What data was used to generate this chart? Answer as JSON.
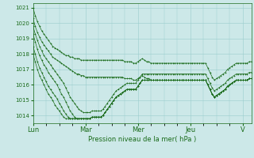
{
  "background_color": "#cce8e8",
  "grid_color": "#99cccc",
  "line_color": "#1a6b1a",
  "marker": "+",
  "xlabel": "Pression niveau de la mer( hPa )",
  "ylim": [
    1013.5,
    1021.3
  ],
  "yticks": [
    1014,
    1015,
    1016,
    1017,
    1018,
    1019,
    1020,
    1021
  ],
  "x_day_labels": [
    "Lun",
    "Mar",
    "Mer",
    "Jeu",
    "V"
  ],
  "x_day_positions": [
    0,
    24,
    48,
    72,
    96
  ],
  "series": [
    [
      1021.0,
      1020.5,
      1020.1,
      1019.8,
      1019.5,
      1019.3,
      1019.1,
      1018.9,
      1018.7,
      1018.5,
      1018.4,
      1018.3,
      1018.2,
      1018.1,
      1018.0,
      1017.9,
      1017.9,
      1017.8,
      1017.8,
      1017.7,
      1017.7,
      1017.7,
      1017.6,
      1017.6,
      1017.6,
      1017.6,
      1017.6,
      1017.6,
      1017.6,
      1017.6,
      1017.6,
      1017.6,
      1017.6,
      1017.6,
      1017.6,
      1017.6,
      1017.6,
      1017.6,
      1017.6,
      1017.6,
      1017.6,
      1017.6,
      1017.5,
      1017.5,
      1017.5,
      1017.5,
      1017.4,
      1017.4,
      1017.5,
      1017.6,
      1017.7,
      1017.6,
      1017.5,
      1017.5,
      1017.4,
      1017.4,
      1017.4,
      1017.4,
      1017.4,
      1017.4,
      1017.4,
      1017.4,
      1017.4,
      1017.4,
      1017.4,
      1017.4,
      1017.4,
      1017.4,
      1017.4,
      1017.4,
      1017.4,
      1017.4,
      1017.4,
      1017.4,
      1017.4,
      1017.4,
      1017.4,
      1017.4,
      1017.4,
      1017.4,
      1017.1,
      1016.8,
      1016.5,
      1016.3,
      1016.4,
      1016.5,
      1016.6,
      1016.7,
      1016.8,
      1017.0,
      1017.1,
      1017.2,
      1017.3,
      1017.4,
      1017.4,
      1017.4,
      1017.4,
      1017.4,
      1017.4,
      1017.5,
      1017.5
    ],
    [
      1020.3,
      1019.8,
      1019.4,
      1019.1,
      1018.8,
      1018.6,
      1018.4,
      1018.2,
      1018.0,
      1017.8,
      1017.7,
      1017.6,
      1017.5,
      1017.4,
      1017.3,
      1017.2,
      1017.1,
      1017.0,
      1016.9,
      1016.8,
      1016.7,
      1016.7,
      1016.6,
      1016.6,
      1016.5,
      1016.5,
      1016.5,
      1016.5,
      1016.5,
      1016.5,
      1016.5,
      1016.5,
      1016.5,
      1016.5,
      1016.5,
      1016.5,
      1016.5,
      1016.5,
      1016.5,
      1016.5,
      1016.5,
      1016.5,
      1016.4,
      1016.4,
      1016.4,
      1016.4,
      1016.3,
      1016.3,
      1016.4,
      1016.5,
      1016.6,
      1016.5,
      1016.4,
      1016.4,
      1016.3,
      1016.3,
      1016.3,
      1016.3,
      1016.3,
      1016.3,
      1016.3,
      1016.3,
      1016.3,
      1016.3,
      1016.3,
      1016.3,
      1016.3,
      1016.3,
      1016.3,
      1016.3,
      1016.3,
      1016.3,
      1016.3,
      1016.3,
      1016.3,
      1016.3,
      1016.3,
      1016.3,
      1016.3,
      1016.3,
      1016.0,
      1015.7,
      1015.4,
      1015.2,
      1015.3,
      1015.4,
      1015.5,
      1015.6,
      1015.7,
      1015.9,
      1016.0,
      1016.1,
      1016.2,
      1016.3,
      1016.3,
      1016.3,
      1016.3,
      1016.3,
      1016.3,
      1016.4,
      1016.4
    ],
    [
      1019.8,
      1019.3,
      1018.9,
      1018.5,
      1018.2,
      1017.9,
      1017.7,
      1017.5,
      1017.3,
      1017.1,
      1016.9,
      1016.7,
      1016.5,
      1016.3,
      1016.1,
      1015.8,
      1015.5,
      1015.2,
      1015.0,
      1014.8,
      1014.6,
      1014.4,
      1014.3,
      1014.2,
      1014.2,
      1014.2,
      1014.2,
      1014.3,
      1014.3,
      1014.3,
      1014.3,
      1014.3,
      1014.4,
      1014.6,
      1014.8,
      1015.0,
      1015.2,
      1015.4,
      1015.6,
      1015.7,
      1015.8,
      1015.9,
      1016.0,
      1016.1,
      1016.1,
      1016.1,
      1016.1,
      1016.1,
      1016.3,
      1016.5,
      1016.7,
      1016.7,
      1016.7,
      1016.7,
      1016.7,
      1016.7,
      1016.7,
      1016.7,
      1016.7,
      1016.7,
      1016.7,
      1016.7,
      1016.7,
      1016.7,
      1016.7,
      1016.7,
      1016.7,
      1016.7,
      1016.7,
      1016.7,
      1016.7,
      1016.7,
      1016.7,
      1016.7,
      1016.7,
      1016.7,
      1016.7,
      1016.7,
      1016.7,
      1016.7,
      1016.4,
      1016.1,
      1015.8,
      1015.6,
      1015.7,
      1015.8,
      1015.9,
      1016.0,
      1016.1,
      1016.3,
      1016.4,
      1016.5,
      1016.6,
      1016.7,
      1016.7,
      1016.7,
      1016.7,
      1016.7,
      1016.7,
      1016.8,
      1016.8
    ],
    [
      1019.3,
      1018.8,
      1018.3,
      1017.9,
      1017.6,
      1017.3,
      1017.1,
      1016.8,
      1016.6,
      1016.4,
      1016.2,
      1016.0,
      1015.7,
      1015.4,
      1015.2,
      1014.9,
      1014.6,
      1014.3,
      1014.1,
      1013.9,
      1013.8,
      1013.8,
      1013.8,
      1013.8,
      1013.8,
      1013.8,
      1013.8,
      1013.9,
      1013.9,
      1013.9,
      1013.9,
      1013.9,
      1014.0,
      1014.2,
      1014.4,
      1014.6,
      1014.8,
      1015.0,
      1015.2,
      1015.3,
      1015.4,
      1015.5,
      1015.6,
      1015.7,
      1015.7,
      1015.7,
      1015.7,
      1015.7,
      1015.9,
      1016.1,
      1016.3,
      1016.3,
      1016.3,
      1016.3,
      1016.3,
      1016.3,
      1016.3,
      1016.3,
      1016.3,
      1016.3,
      1016.3,
      1016.3,
      1016.3,
      1016.3,
      1016.3,
      1016.3,
      1016.3,
      1016.3,
      1016.3,
      1016.3,
      1016.3,
      1016.3,
      1016.3,
      1016.3,
      1016.3,
      1016.3,
      1016.3,
      1016.3,
      1016.3,
      1016.3,
      1016.0,
      1015.7,
      1015.4,
      1015.2,
      1015.3,
      1015.4,
      1015.5,
      1015.6,
      1015.7,
      1015.9,
      1016.0,
      1016.1,
      1016.2,
      1016.3,
      1016.3,
      1016.3,
      1016.3,
      1016.3,
      1016.3,
      1016.4,
      1016.4
    ],
    [
      1018.5,
      1018.0,
      1017.5,
      1017.1,
      1016.8,
      1016.5,
      1016.2,
      1015.9,
      1015.7,
      1015.5,
      1015.3,
      1015.1,
      1014.8,
      1014.6,
      1014.3,
      1014.1,
      1013.9,
      1013.8,
      1013.8,
      1013.8,
      1013.8,
      1013.8,
      1013.8,
      1013.8,
      1013.8,
      1013.8,
      1013.8,
      1013.9,
      1013.9,
      1013.9,
      1013.9,
      1013.9,
      1014.0,
      1014.2,
      1014.4,
      1014.6,
      1014.8,
      1015.0,
      1015.2,
      1015.3,
      1015.4,
      1015.5,
      1015.6,
      1015.7,
      1015.7,
      1015.7,
      1015.7,
      1015.7,
      1015.9,
      1016.1,
      1016.3,
      1016.3,
      1016.3,
      1016.3,
      1016.3,
      1016.3,
      1016.3,
      1016.3,
      1016.3,
      1016.3,
      1016.3,
      1016.3,
      1016.3,
      1016.3,
      1016.3,
      1016.3,
      1016.3,
      1016.3,
      1016.3,
      1016.3,
      1016.3,
      1016.3,
      1016.3,
      1016.3,
      1016.3,
      1016.3,
      1016.3,
      1016.3,
      1016.3,
      1016.3,
      1016.0,
      1015.7,
      1015.4,
      1015.2,
      1015.3,
      1015.4,
      1015.5,
      1015.6,
      1015.7,
      1015.9,
      1016.0,
      1016.1,
      1016.2,
      1016.3,
      1016.3,
      1016.3,
      1016.3,
      1016.3,
      1016.3,
      1016.4,
      1016.4
    ],
    [
      1018.0,
      1017.5,
      1017.0,
      1016.6,
      1016.3,
      1016.0,
      1015.7,
      1015.4,
      1015.2,
      1015.0,
      1014.7,
      1014.5,
      1014.3,
      1014.1,
      1013.9,
      1013.8,
      1013.8,
      1013.8,
      1013.8,
      1013.8,
      1013.8,
      1013.8,
      1013.8,
      1013.8,
      1013.8,
      1013.8,
      1013.8,
      1013.9,
      1013.9,
      1013.9,
      1013.9,
      1013.9,
      1014.0,
      1014.2,
      1014.4,
      1014.6,
      1014.8,
      1015.0,
      1015.2,
      1015.3,
      1015.4,
      1015.5,
      1015.6,
      1015.7,
      1015.7,
      1015.7,
      1015.7,
      1015.7,
      1015.9,
      1016.1,
      1016.3,
      1016.3,
      1016.3,
      1016.3,
      1016.3,
      1016.3,
      1016.3,
      1016.3,
      1016.3,
      1016.3,
      1016.3,
      1016.3,
      1016.3,
      1016.3,
      1016.3,
      1016.3,
      1016.3,
      1016.3,
      1016.3,
      1016.3,
      1016.3,
      1016.3,
      1016.3,
      1016.3,
      1016.3,
      1016.3,
      1016.3,
      1016.3,
      1016.3,
      1016.3,
      1016.0,
      1015.7,
      1015.4,
      1015.2,
      1015.3,
      1015.4,
      1015.5,
      1015.6,
      1015.7,
      1015.9,
      1016.0,
      1016.1,
      1016.2,
      1016.3,
      1016.3,
      1016.3,
      1016.3,
      1016.3,
      1016.3,
      1016.4,
      1016.4
    ]
  ]
}
